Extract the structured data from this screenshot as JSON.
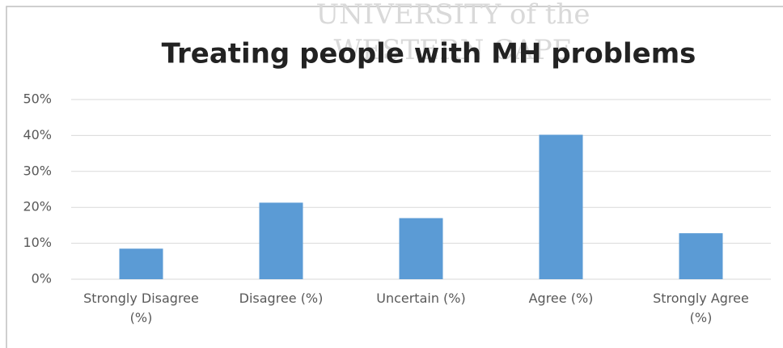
{
  "watermark": [
    "UNIVERSITY of the",
    "WESTERN CAPE"
  ],
  "chart_data": {
    "type": "bar",
    "title": "Treating people with MH problems",
    "categories": [
      "Strongly Disagree (%)",
      "Disagree (%)",
      "Uncertain (%)",
      "Agree (%)",
      "Strongly Agree (%)"
    ],
    "values": [
      8.5,
      21.3,
      17,
      40.2,
      12.8
    ],
    "color": "#5b9bd5",
    "ylim": [
      0,
      50
    ],
    "yticks": [
      {
        "value": 0,
        "label": "0%"
      },
      {
        "value": 10,
        "label": "10%"
      },
      {
        "value": 20,
        "label": "20%"
      },
      {
        "value": 30,
        "label": "30%"
      },
      {
        "value": 40,
        "label": "40%"
      },
      {
        "value": 50,
        "label": "50%"
      }
    ],
    "grid": true
  }
}
